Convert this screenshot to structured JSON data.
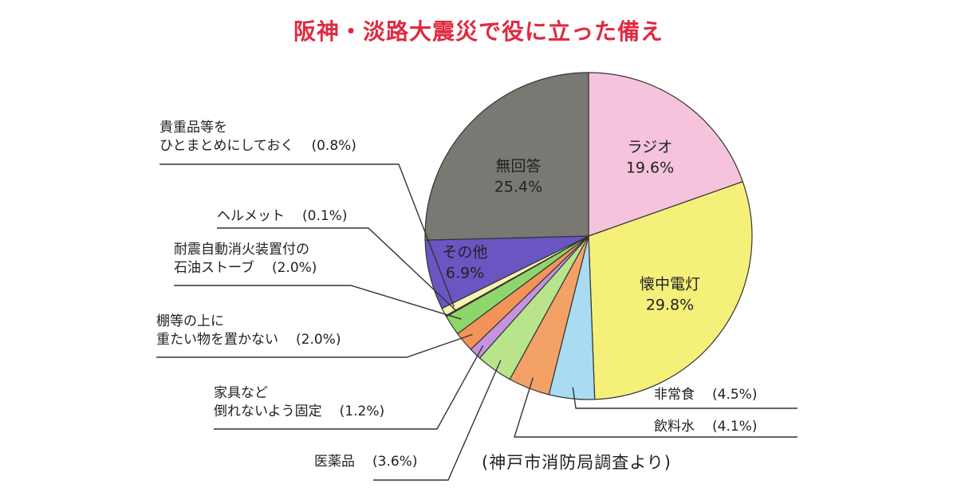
{
  "title": "阪神・淡路大震災で役に立った備え",
  "source": "(神戸市消防局調査より)",
  "colors": {
    "title": "#e02a3f",
    "radio": "#f6c3dc",
    "flashlight": "#f4f07a",
    "food": "#a9dbf3",
    "water": "#f4a167",
    "medicine": "#b8e48c",
    "furniture": "#c593df",
    "shelf": "#f2945a",
    "stove": "#8ed56b",
    "helmet": "#ffe34a",
    "valuables": "#f9f2b0",
    "other": "#6a55c3",
    "none": "#7a7872"
  },
  "chart_data": {
    "type": "pie",
    "title": "阪神・淡路大震災で役に立った備え",
    "slices": [
      {
        "id": "radio",
        "label": "ラジオ",
        "value": 19.6,
        "pct_text": "19.6%",
        "color": "#f6c3dc"
      },
      {
        "id": "flashlight",
        "label": "懐中電灯",
        "value": 29.8,
        "pct_text": "29.8%",
        "color": "#f4f07a"
      },
      {
        "id": "food",
        "label": "非常食",
        "value": 4.5,
        "pct_text": "(4.5%)",
        "color": "#a9dbf3"
      },
      {
        "id": "water",
        "label": "飲料水",
        "value": 4.1,
        "pct_text": "(4.1%)",
        "color": "#f4a167"
      },
      {
        "id": "medicine",
        "label": "医薬品",
        "value": 3.6,
        "pct_text": "(3.6%)",
        "color": "#b8e48c"
      },
      {
        "id": "furniture",
        "label": "家具など倒れないよう固定",
        "value": 1.2,
        "pct_text": "(1.2%)",
        "color": "#c593df"
      },
      {
        "id": "shelf",
        "label": "棚等の上に重たい物を置かない",
        "value": 2.0,
        "pct_text": "(2.0%)",
        "color": "#f2945a"
      },
      {
        "id": "stove",
        "label": "耐震自動消火装置付の石油ストーブ",
        "value": 2.0,
        "pct_text": "(2.0%)",
        "color": "#8ed56b"
      },
      {
        "id": "helmet",
        "label": "ヘルメット",
        "value": 0.1,
        "pct_text": "(0.1%)",
        "color": "#ffe34a"
      },
      {
        "id": "valuables",
        "label": "貴重品等をひとまとめにしておく",
        "value": 0.8,
        "pct_text": "(0.8%)",
        "color": "#f9f2b0"
      },
      {
        "id": "other",
        "label": "その他",
        "value": 6.9,
        "pct_text": "6.9%",
        "color": "#6a55c3"
      },
      {
        "id": "none",
        "label": "無回答",
        "value": 25.4,
        "pct_text": "25.4%",
        "color": "#7a7872"
      }
    ]
  },
  "labels": {
    "radio": {
      "name": "ラジオ",
      "pct": "19.6%"
    },
    "flashlight": {
      "name": "懐中電灯",
      "pct": "29.8%"
    },
    "none": {
      "name": "無回答",
      "pct": "25.4%"
    },
    "other": {
      "name": "その他",
      "pct": "6.9%"
    },
    "food": {
      "name": "非常食",
      "pct": "(4.5%)"
    },
    "water": {
      "name": "飲料水",
      "pct": "(4.1%)"
    },
    "medicine": {
      "name": "医薬品",
      "pct": "(3.6%)"
    },
    "furniture": {
      "line1": "家具など",
      "line2": "倒れないよう固定",
      "pct": "(1.2%)"
    },
    "shelf": {
      "line1": "棚等の上に",
      "line2": "重たい物を置かない",
      "pct": "(2.0%)"
    },
    "stove": {
      "line1": "耐震自動消火装置付の",
      "line2": "石油ストーブ",
      "pct": "(2.0%)"
    },
    "helmet": {
      "name": "ヘルメット",
      "pct": "(0.1%)"
    },
    "valuables": {
      "line1": "貴重品等を",
      "line2": "ひとまとめにしておく",
      "pct": "(0.8%)"
    }
  }
}
